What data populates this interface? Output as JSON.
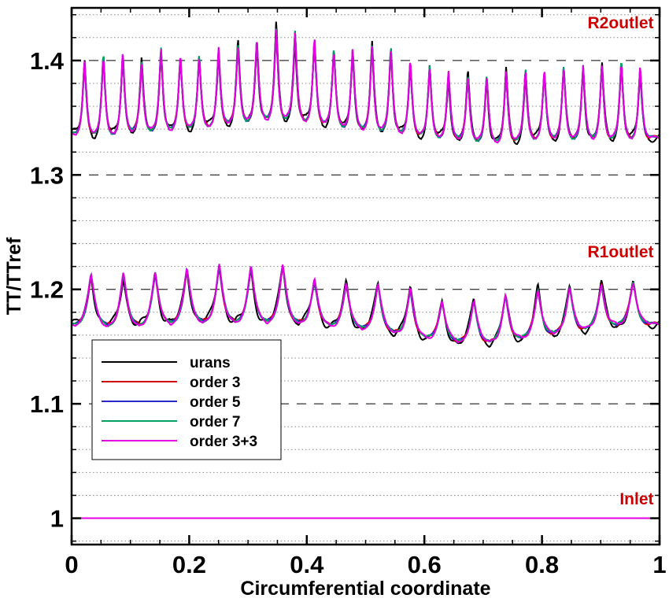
{
  "chart_data": {
    "type": "line",
    "title": "",
    "xlabel": "Circumferential coordinate",
    "ylabel": "TT/TTref",
    "xlim": [
      0,
      1
    ],
    "ylim": [
      0.977,
      1.446
    ],
    "x_ticks": [
      0,
      0.2,
      0.4,
      0.6,
      0.8,
      1
    ],
    "x_tick_labels": [
      "0",
      "0.2",
      "0.4",
      "0.6",
      "0.8",
      "1"
    ],
    "y_ticks": [
      1,
      1.1,
      1.2,
      1.3,
      1.4
    ],
    "y_tick_labels": [
      "1",
      "1.1",
      "1.2",
      "1.3",
      "1.4"
    ],
    "grid": "dashed major y gridlines, dotted minor y gridlines",
    "legend_position": "lower-left",
    "annotations": [
      {
        "text": "R2outlet",
        "x": 0.99,
        "y": 1.428
      },
      {
        "text": "R1outlet",
        "x": 0.99,
        "y": 1.228
      },
      {
        "text": "Inlet",
        "x": 0.99,
        "y": 1.012
      }
    ],
    "annotation_color": "#cc0000",
    "r1_outlet": {
      "peaks_x": [
        0.033,
        0.088,
        0.142,
        0.196,
        0.251,
        0.305,
        0.359,
        0.413,
        0.467,
        0.521,
        0.576,
        0.63,
        0.684,
        0.738,
        0.793,
        0.847,
        0.901,
        0.955
      ],
      "peaks_y": [
        1.213,
        1.213,
        1.214,
        1.219,
        1.22,
        1.22,
        1.222,
        1.208,
        1.205,
        1.206,
        1.2,
        1.19,
        1.191,
        1.195,
        1.2,
        1.203,
        1.204,
        1.207
      ],
      "baseline_y": [
        1.17,
        1.168,
        1.17,
        1.172,
        1.172,
        1.172,
        1.172,
        1.17,
        1.167,
        1.165,
        1.16,
        1.156,
        1.153,
        1.155,
        1.16,
        1.163,
        1.168,
        1.17
      ]
    },
    "r2_outlet": {
      "peaks_x": [
        0.022,
        0.054,
        0.087,
        0.119,
        0.152,
        0.185,
        0.217,
        0.25,
        0.283,
        0.315,
        0.348,
        0.38,
        0.413,
        0.446,
        0.478,
        0.511,
        0.543,
        0.576,
        0.609,
        0.641,
        0.674,
        0.706,
        0.739,
        0.772,
        0.804,
        0.837,
        0.87,
        0.902,
        0.935,
        0.967
      ],
      "peaks_y": [
        1.4,
        1.405,
        1.406,
        1.4,
        1.41,
        1.405,
        1.405,
        1.41,
        1.415,
        1.42,
        1.428,
        1.425,
        1.42,
        1.41,
        1.41,
        1.415,
        1.41,
        1.4,
        1.395,
        1.39,
        1.388,
        1.388,
        1.39,
        1.392,
        1.392,
        1.395,
        1.395,
        1.398,
        1.398,
        1.395
      ],
      "baseline_y": [
        1.337,
        1.336,
        1.338,
        1.34,
        1.34,
        1.342,
        1.342,
        1.345,
        1.347,
        1.35,
        1.35,
        1.35,
        1.347,
        1.345,
        1.342,
        1.34,
        1.34,
        1.337,
        1.335,
        1.333,
        1.332,
        1.33,
        1.33,
        1.332,
        1.333,
        1.333,
        1.333,
        1.333,
        1.333,
        1.333
      ]
    },
    "inlet": {
      "x": [
        0,
        1
      ],
      "y": [
        1.0,
        1.0
      ]
    },
    "series": [
      {
        "name": "urans",
        "color": "#000000"
      },
      {
        "name": "order 3",
        "color": "#cc0000"
      },
      {
        "name": "order 5",
        "color": "#2828c8"
      },
      {
        "name": "order 7",
        "color": "#00a060"
      },
      {
        "name": "order 3+3",
        "color": "#e000e0"
      }
    ]
  }
}
